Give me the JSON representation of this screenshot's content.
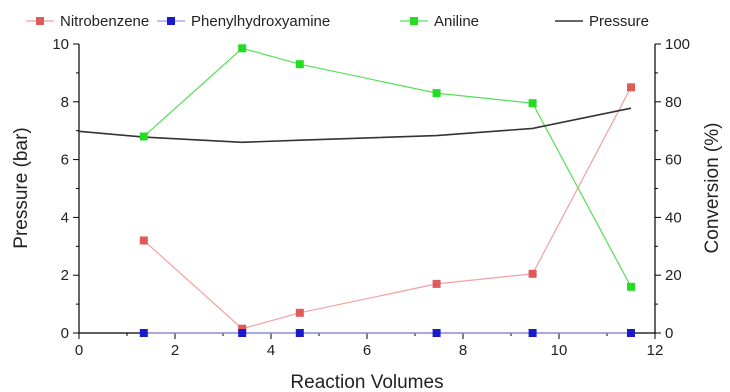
{
  "chart_data": {
    "type": "line",
    "xlabel": "Reaction Volumes",
    "ylabel_left": "Pressure (bar)",
    "ylabel_right": "Conversion (%)",
    "xlim": [
      0,
      12
    ],
    "ylim_left": [
      0,
      10
    ],
    "ylim_right": [
      0,
      100
    ],
    "x_ticks": [
      "0",
      "2",
      "4",
      "6",
      "8",
      "10",
      "12"
    ],
    "y_left_ticks": [
      "0",
      "2",
      "4",
      "6",
      "8",
      "10"
    ],
    "y_right_ticks": [
      "0",
      "20",
      "40",
      "60",
      "80",
      "100"
    ],
    "legend_position": "top",
    "grid": false,
    "series": [
      {
        "name": "Nitrobenzene",
        "axis": "right",
        "color": "#e05a5a",
        "line_color": "#f2a0a0",
        "marker": "square",
        "x": [
          1.35,
          3.4,
          4.6,
          7.45,
          9.45,
          11.5
        ],
        "y": [
          32,
          1.5,
          7,
          17,
          20.5,
          85
        ]
      },
      {
        "name": "Phenylhydroxyamine",
        "axis": "right",
        "color": "#1a1acc",
        "line_color": "#9a9aee",
        "marker": "square",
        "x": [
          1.35,
          3.4,
          4.6,
          7.45,
          9.45,
          11.5
        ],
        "y": [
          0,
          0,
          0,
          0,
          0,
          0
        ]
      },
      {
        "name": "Aniline",
        "axis": "right",
        "color": "#22dd22",
        "line_color": "#55e055",
        "marker": "square",
        "x": [
          1.35,
          3.4,
          4.6,
          7.45,
          9.45,
          11.5
        ],
        "y": [
          68,
          98.5,
          93,
          83,
          79.5,
          16
        ]
      },
      {
        "name": "Pressure",
        "axis": "left",
        "color": "#333333",
        "line_color": "#333333",
        "marker": "none",
        "x": [
          0,
          1.35,
          3.4,
          4.6,
          7.45,
          9.45,
          11.5
        ],
        "y": [
          6.98,
          6.78,
          6.6,
          6.67,
          6.83,
          7.08,
          7.78
        ]
      }
    ]
  }
}
